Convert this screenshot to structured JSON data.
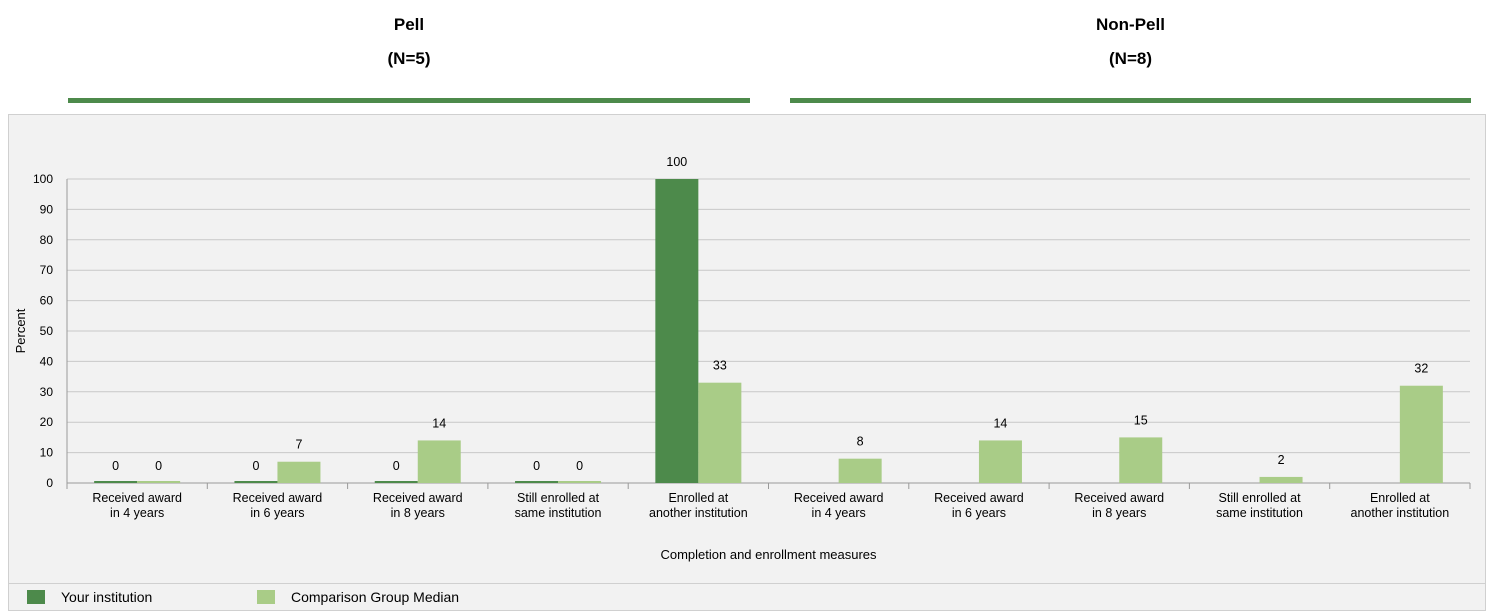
{
  "groups": [
    {
      "name": "Pell",
      "n_label": "(N=5)"
    },
    {
      "name": "Non-Pell",
      "n_label": "(N=8)"
    }
  ],
  "legend": {
    "series_1": "Your institution",
    "series_2": "Comparison Group Median"
  },
  "colors": {
    "your_institution": "#4d8a4b",
    "comparison_median": "#a9cc87",
    "group_rule": "#4d8a4b"
  },
  "chart_data": {
    "type": "bar",
    "title": "",
    "xlabel": "Completion and enrollment measures",
    "ylabel": "Percent",
    "ylim": [
      0,
      100
    ],
    "yticks": [
      0,
      10,
      20,
      30,
      40,
      50,
      60,
      70,
      80,
      90,
      100
    ],
    "grid": true,
    "legend_placement": "bottom",
    "categories": [
      [
        "Received award",
        "in 4 years"
      ],
      [
        "Received award",
        "in 6 years"
      ],
      [
        "Received award",
        "in 8 years"
      ],
      [
        "Still enrolled at",
        "same institution"
      ],
      [
        "Enrolled at",
        "another institution"
      ],
      [
        "Received award",
        "in 4 years"
      ],
      [
        "Received award",
        "in 6 years"
      ],
      [
        "Received award",
        "in 8 years"
      ],
      [
        "Still enrolled at",
        "same institution"
      ],
      [
        "Enrolled at",
        "another institution"
      ]
    ],
    "series": [
      {
        "name": "Your institution",
        "values": [
          0,
          0,
          0,
          0,
          100,
          null,
          null,
          null,
          null,
          null
        ]
      },
      {
        "name": "Comparison Group Median",
        "values": [
          0,
          7,
          14,
          0,
          33,
          8,
          14,
          15,
          2,
          32
        ]
      }
    ]
  }
}
